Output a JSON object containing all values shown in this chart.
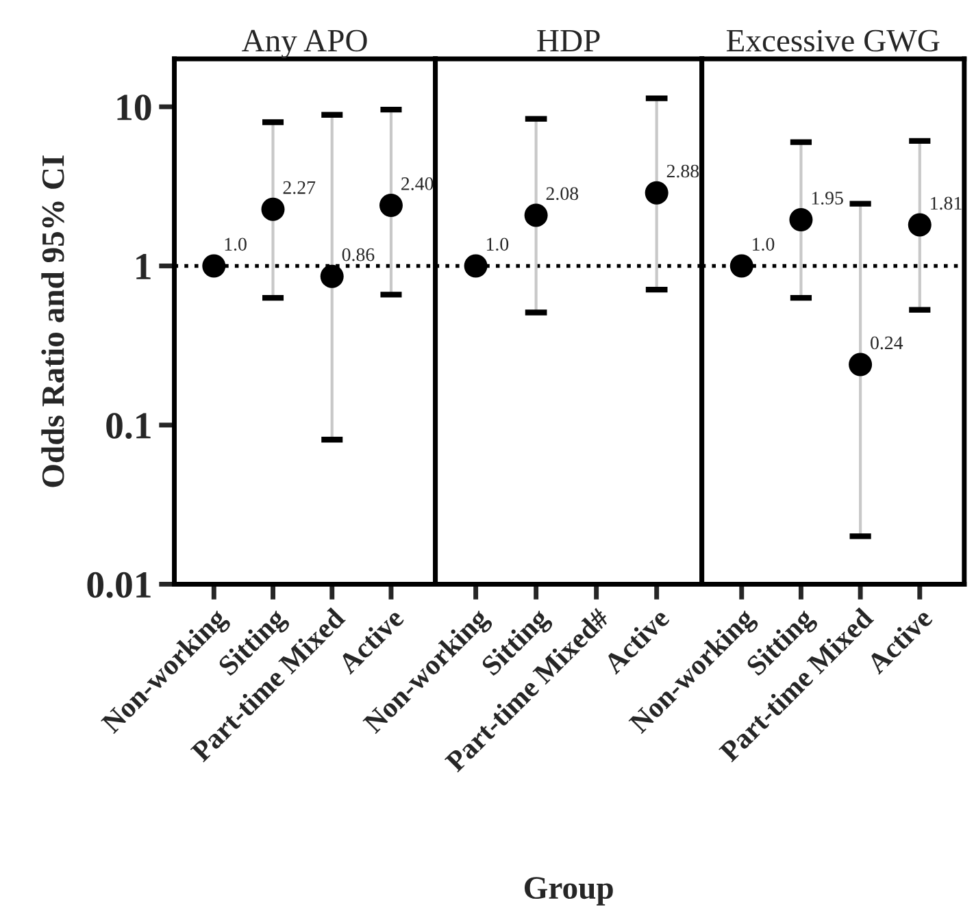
{
  "chart_data": [
    {
      "type": "scatter",
      "title": "Any APO",
      "ylabel": "Odds Ratio and 95% CI",
      "categories": [
        "Non-working",
        "Sitting",
        "Part-time Mixed",
        "Active"
      ],
      "series": [
        {
          "color": "#000000",
          "values": [
            1.0,
            2.27,
            0.86,
            2.4
          ],
          "errors": [
            null,
            [
              0.63,
              8.0
            ],
            [
              0.081,
              8.9
            ],
            [
              0.66,
              9.6
            ]
          ],
          "value_labels": [
            "1.0",
            "2.27",
            "0.86",
            "2.40"
          ]
        }
      ],
      "ylim": [
        0.01,
        20
      ],
      "yticks": [
        0.01,
        0.1,
        1,
        10
      ],
      "log": true,
      "marker": "circle",
      "grid": false,
      "legend": false,
      "ref_lines": [
        {
          "axis": "y",
          "value": 1,
          "line_style": "dotted",
          "color": "#000000"
        }
      ]
    },
    {
      "type": "scatter",
      "title": "HDP",
      "xlabel": "Group",
      "categories": [
        "Non-working",
        "Sitting",
        "Part-time Mixed#",
        "Active"
      ],
      "series": [
        {
          "color": "#000000",
          "values": [
            1.0,
            2.08,
            null,
            2.88
          ],
          "errors": [
            null,
            [
              0.51,
              8.4
            ],
            null,
            [
              0.71,
              11.3
            ]
          ],
          "value_labels": [
            "1.0",
            "2.08",
            null,
            "2.88"
          ]
        }
      ],
      "ylim": [
        0.01,
        20
      ],
      "yticks": [
        0.01,
        0.1,
        1,
        10
      ],
      "log": true,
      "marker": "circle",
      "grid": false,
      "legend": false,
      "tick_labels": "x",
      "ref_lines": [
        {
          "axis": "y",
          "value": 1,
          "line_style": "dotted",
          "color": "#000000"
        }
      ]
    },
    {
      "type": "scatter",
      "title": "Excessive GWG",
      "categories": [
        "Non-working",
        "Sitting",
        "Part-time Mixed",
        "Active"
      ],
      "series": [
        {
          "color": "#000000",
          "values": [
            1.0,
            1.95,
            0.24,
            1.81
          ],
          "errors": [
            null,
            [
              0.63,
              6.0
            ],
            [
              0.02,
              2.46
            ],
            [
              0.53,
              6.1
            ]
          ],
          "value_labels": [
            "1.0",
            "1.95",
            "0.24",
            "1.81"
          ]
        }
      ],
      "ylim": [
        0.01,
        20
      ],
      "yticks": [
        0.01,
        0.1,
        1,
        10
      ],
      "log": true,
      "marker": "circle",
      "grid": false,
      "legend": false,
      "tick_labels": "x",
      "ref_lines": [
        {
          "axis": "y",
          "value": 1,
          "line_style": "dotted",
          "color": "#000000"
        }
      ]
    }
  ]
}
